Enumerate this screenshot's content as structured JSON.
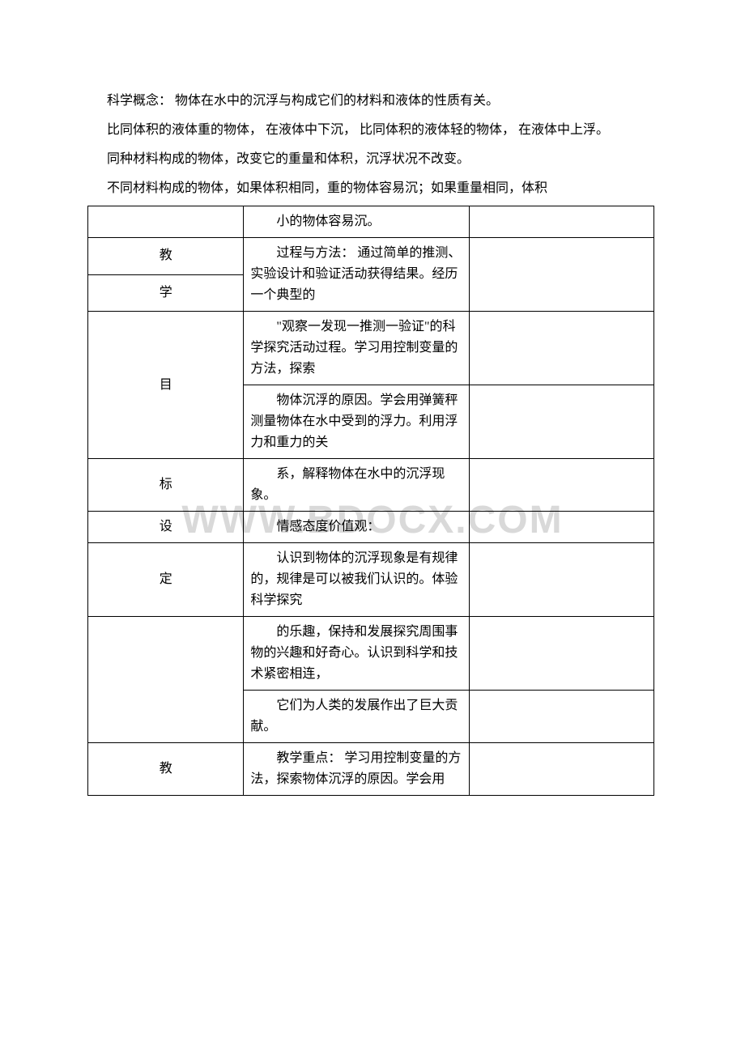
{
  "watermark": "WWW.BDOCX.COM",
  "paragraphs": [
    "科学概念： 物体在水中的沉浮与构成它们的材料和液体的性质有关。",
    "比同体积的液体重的物体， 在液体中下沉， 比同体积的液体轻的物体， 在液体中上浮。",
    "同种材料构成的物体，改变它的重量和体积，沉浮状况不改变。",
    "不同材料构成的物体，如果体积相同，重的物体容易沉；如果重量相同，体积"
  ],
  "table": {
    "col1": [
      "",
      "教",
      "学",
      "",
      "目",
      "标",
      "设",
      "定",
      "",
      "",
      "教"
    ],
    "col2": [
      "小的物体容易沉。",
      "过程与方法： 通过简单的推测、实验设计和验证活动获得结果。经历一个典型的",
      "\"观察一发现一推测一验证\"的科学探究活动过程。学习用控制变量的方法，探索",
      "物体沉浮的原因。学会用弹簧秤测量物体在水中受到的浮力。利用浮力和重力的关",
      "系，解释物体在水中的沉浮现象。",
      "情感态度价值观：",
      "认识到物体的沉浮现象是有规律的，规律是可以被我们认识的。体验科学探究",
      "的乐趣，保持和发展探究周围事物的兴趣和好奇心。认识到科学和技术紧密相连，",
      "它们为人类的发展作出了巨大贡献。",
      "教学重点： 学习用控制变量的方法，探索物体沉浮的原因。学会用"
    ],
    "row1_merge_start": 1,
    "row1_merge_span": 2,
    "row3_merge_start": 3,
    "row3_merge_span": 2,
    "row7_merge_start": 8,
    "row7_merge_span": 2
  }
}
